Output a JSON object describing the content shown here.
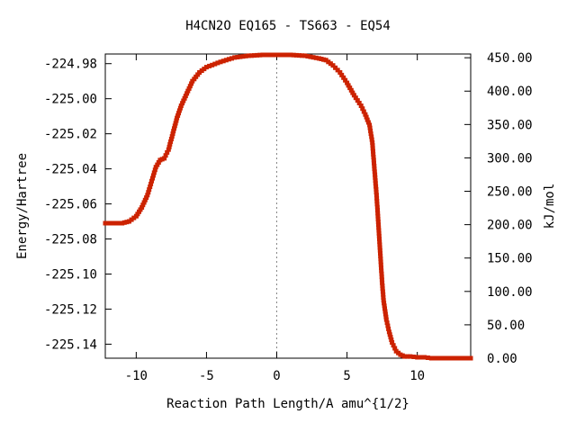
{
  "chart_data": {
    "type": "line",
    "title": "H4CN2O   EQ165 - TS663 - EQ54",
    "xlabel": "Reaction Path Length/A amu^{1/2}",
    "ylabel": "Energy/Hartree",
    "y2label": "kJ/mol",
    "xlim": [
      -12.2,
      13.8
    ],
    "ylim": [
      -225.148,
      -224.9745
    ],
    "y2lim": [
      0,
      455.6
    ],
    "x_ticks": [
      -10,
      -5,
      0,
      5,
      10
    ],
    "x_tick_labels": [
      "-10",
      "-5",
      "0",
      "5",
      "10"
    ],
    "y_ticks": [
      -224.98,
      -225.0,
      -225.02,
      -225.04,
      -225.06,
      -225.08,
      -225.1,
      -225.12,
      -225.14
    ],
    "y_tick_labels": [
      "-224.98",
      "-225.00",
      "-225.02",
      "-225.04",
      "-225.06",
      "-225.08",
      "-225.10",
      "-225.12",
      "-225.14"
    ],
    "y2_ticks": [
      450,
      400,
      350,
      300,
      250,
      200,
      150,
      100,
      50,
      0
    ],
    "y2_tick_labels": [
      "450.00",
      "400.00",
      "350.00",
      "300.00",
      "250.00",
      "200.00",
      "150.00",
      "100.00",
      "50.00",
      "0.00"
    ],
    "ts_marker_x": 0,
    "series": [
      {
        "line_color": "#00aa00",
        "marker_color": "#cc2200",
        "x": [
          -12.2,
          -11.0,
          -10.5,
          -10.0,
          -9.6,
          -9.2,
          -8.9,
          -8.6,
          -8.3,
          -8.0,
          -7.7,
          -7.4,
          -7.1,
          -6.8,
          -6.4,
          -6.0,
          -5.5,
          -5.0,
          -4.0,
          -3.0,
          -2.0,
          -1.0,
          0.0,
          1.0,
          2.0,
          3.0,
          3.5,
          4.0,
          4.5,
          5.0,
          5.5,
          6.0,
          6.3,
          6.6,
          6.8,
          7.0,
          7.1,
          7.2,
          7.3,
          7.4,
          7.5,
          7.6,
          7.8,
          8.0,
          8.2,
          8.5,
          8.8,
          9.1,
          9.5,
          10.0,
          10.5,
          11.0,
          12.0,
          13.0,
          13.8
        ],
        "y": [
          -225.071,
          -225.071,
          -225.07,
          -225.067,
          -225.062,
          -225.055,
          -225.047,
          -225.039,
          -225.035,
          -225.034,
          -225.029,
          -225.02,
          -225.011,
          -225.004,
          -224.997,
          -224.99,
          -224.985,
          -224.982,
          -224.979,
          -224.9765,
          -224.9755,
          -224.975,
          -224.975,
          -224.975,
          -224.9755,
          -224.977,
          -224.978,
          -224.981,
          -224.985,
          -224.991,
          -224.998,
          -225.004,
          -225.009,
          -225.015,
          -225.025,
          -225.045,
          -225.055,
          -225.067,
          -225.08,
          -225.093,
          -225.105,
          -225.115,
          -225.126,
          -225.133,
          -225.139,
          -225.144,
          -225.146,
          -225.147,
          -225.147,
          -225.1475,
          -225.1475,
          -225.148,
          -225.148,
          -225.148,
          -225.148
        ]
      }
    ]
  }
}
